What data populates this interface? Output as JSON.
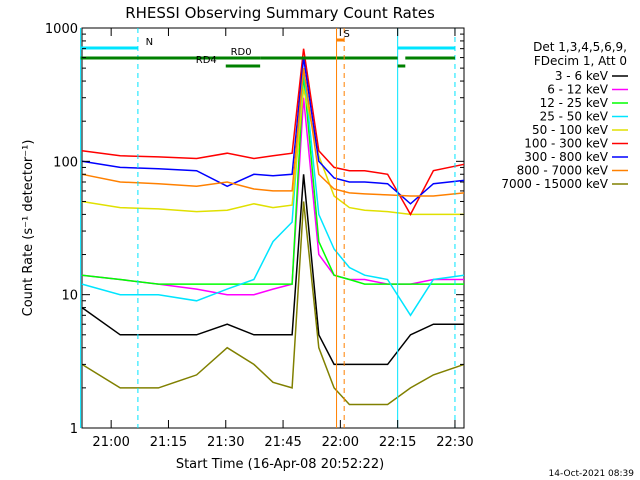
{
  "chart_data": {
    "type": "line",
    "title": "RHESSI Observing Summary Count Rates",
    "xlabel": "Start Time (16-Apr-08 20:52:22)",
    "ylabel": "Count Rate (s⁻¹ detector⁻¹)",
    "yscale": "log",
    "ylim": [
      1,
      1000
    ],
    "xlim_minutes": [
      0,
      100
    ],
    "x_ticks": [
      "21:00",
      "21:15",
      "21:30",
      "21:45",
      "22:00",
      "22:15",
      "22:30"
    ],
    "y_ticks": [
      "1",
      "10",
      "100",
      "1000"
    ],
    "header_lines": [
      "Det 1,3,4,5,6,9,",
      "FDecim 1, Att 0"
    ],
    "footer_timestamp": "14-Oct-2021 08:39",
    "state_bars": [
      {
        "label": "N",
        "color": "#00e5ff",
        "segments": [
          [
            "20:52",
            "21:07"
          ],
          [
            "22:15",
            "22:30"
          ]
        ]
      },
      {
        "label": "RD0",
        "color": "#008000",
        "segments": [
          [
            "20:52",
            "21:39"
          ],
          [
            "21:39",
            "22:15"
          ],
          [
            "22:17",
            "22:30"
          ]
        ]
      },
      {
        "label": "RD4",
        "color": "#008000",
        "segments": [
          [
            "21:30",
            "21:39"
          ],
          [
            "22:15",
            "22:17"
          ]
        ]
      },
      {
        "label": "S",
        "color": "#ff8000",
        "segments": [
          [
            "21:59",
            "22:01"
          ]
        ]
      }
    ],
    "series": [
      {
        "name": "3 - 6 keV",
        "color": "#000000",
        "x": [
          0,
          10,
          20,
          30,
          38,
          45,
          50,
          55,
          58,
          62,
          66,
          70,
          74,
          80,
          86,
          92,
          100
        ],
        "y": [
          8,
          5,
          5,
          5,
          6,
          5,
          5,
          5,
          80,
          5,
          3,
          3,
          3,
          3,
          5,
          6,
          6
        ]
      },
      {
        "name": "6 - 12 keV",
        "color": "#ff00ff",
        "x": [
          0,
          10,
          20,
          30,
          38,
          45,
          50,
          55,
          58,
          62,
          66,
          70,
          74,
          80,
          86,
          92,
          100
        ],
        "y": [
          14,
          13,
          12,
          11,
          10,
          10,
          11,
          12,
          300,
          20,
          14,
          13,
          13,
          12,
          12,
          13,
          13
        ]
      },
      {
        "name": "12 - 25 keV",
        "color": "#00ff00",
        "x": [
          0,
          10,
          20,
          30,
          38,
          45,
          50,
          55,
          58,
          62,
          66,
          70,
          74,
          80,
          86,
          92,
          100
        ],
        "y": [
          14,
          13,
          12,
          12,
          12,
          12,
          12,
          12,
          450,
          25,
          14,
          13,
          12,
          12,
          12,
          12,
          12
        ]
      },
      {
        "name": "25 - 50 keV",
        "color": "#00e5ff",
        "x": [
          0,
          10,
          20,
          30,
          38,
          45,
          50,
          55,
          58,
          62,
          66,
          70,
          74,
          80,
          86,
          92,
          100
        ],
        "y": [
          12,
          10,
          10,
          9,
          11,
          13,
          25,
          35,
          500,
          40,
          22,
          16,
          14,
          13,
          7,
          13,
          14
        ]
      },
      {
        "name": "50 - 100 keV",
        "color": "#e0e000",
        "x": [
          0,
          10,
          20,
          30,
          38,
          45,
          50,
          55,
          58,
          62,
          66,
          70,
          74,
          80,
          86,
          92,
          100
        ],
        "y": [
          50,
          45,
          44,
          42,
          43,
          48,
          45,
          47,
          350,
          110,
          55,
          45,
          43,
          42,
          40,
          40,
          40
        ]
      },
      {
        "name": "100 - 300 keV",
        "color": "#ff0000",
        "x": [
          0,
          10,
          20,
          30,
          38,
          45,
          50,
          55,
          58,
          62,
          66,
          70,
          74,
          80,
          86,
          92,
          100
        ],
        "y": [
          120,
          110,
          108,
          105,
          115,
          105,
          110,
          115,
          700,
          120,
          90,
          85,
          85,
          80,
          40,
          85,
          95
        ]
      },
      {
        "name": "300 - 800 keV",
        "color": "#0000ff",
        "x": [
          0,
          10,
          20,
          30,
          38,
          45,
          50,
          55,
          58,
          62,
          66,
          70,
          74,
          80,
          86,
          92,
          100
        ],
        "y": [
          100,
          90,
          88,
          85,
          65,
          80,
          78,
          80,
          600,
          100,
          75,
          70,
          70,
          68,
          48,
          68,
          72
        ]
      },
      {
        "name": "800 - 7000 keV",
        "color": "#ff8000",
        "x": [
          0,
          10,
          20,
          30,
          38,
          45,
          50,
          55,
          58,
          62,
          66,
          70,
          74,
          80,
          86,
          92,
          100
        ],
        "y": [
          80,
          70,
          68,
          65,
          70,
          62,
          60,
          60,
          500,
          80,
          62,
          58,
          57,
          56,
          55,
          55,
          58
        ]
      },
      {
        "name": "7000 - 15000 keV",
        "color": "#808000",
        "x": [
          0,
          10,
          20,
          30,
          38,
          45,
          50,
          55,
          58,
          62,
          66,
          70,
          74,
          80,
          86,
          92,
          100
        ],
        "y": [
          3,
          2,
          2,
          2.5,
          4,
          3,
          2.2,
          2,
          50,
          4,
          2,
          1.5,
          1.5,
          1.5,
          2,
          2.5,
          3
        ]
      }
    ]
  }
}
